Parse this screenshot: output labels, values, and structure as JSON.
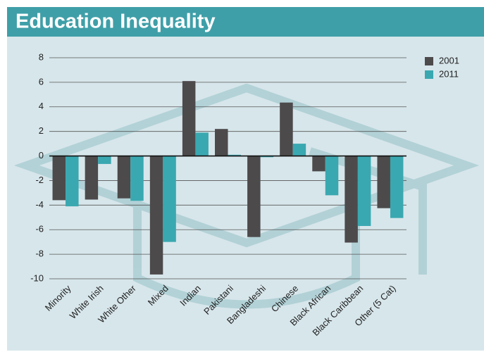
{
  "chart_data": {
    "type": "bar",
    "title": "Education Inequality",
    "categories": [
      "Minority",
      "White Irish",
      "White Other",
      "Mixed",
      "Indian",
      "Pakistani",
      "Bangladeshi",
      "Chinese",
      "Black African",
      "Black Caribbean",
      "Other (5 Cat)"
    ],
    "series": [
      {
        "name": "2001",
        "color": "#4d4a4b",
        "values": [
          -3.6,
          -3.55,
          -3.45,
          -9.65,
          6.1,
          2.2,
          -6.6,
          4.35,
          -1.25,
          -7.05,
          -4.25
        ]
      },
      {
        "name": "2011",
        "color": "#3aa8b0",
        "values": [
          -4.1,
          -0.65,
          -3.65,
          -7.0,
          1.9,
          0.1,
          -0.1,
          1.0,
          -3.2,
          -5.7,
          -5.05
        ]
      }
    ],
    "ylim": [
      -10,
      8
    ],
    "yticks": [
      -10,
      -8,
      -6,
      -4,
      -2,
      0,
      2,
      4,
      6,
      8
    ],
    "grid": true,
    "legend": "top-right"
  }
}
